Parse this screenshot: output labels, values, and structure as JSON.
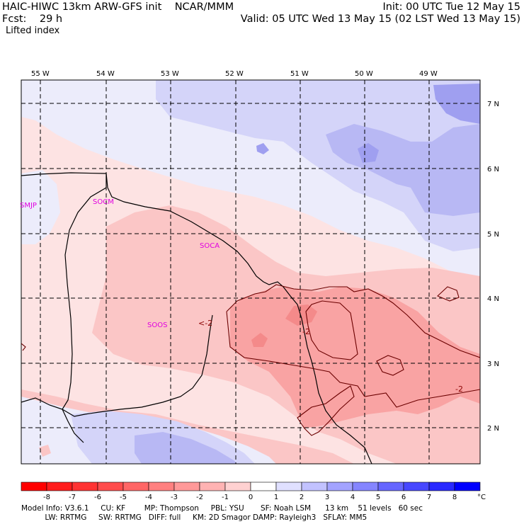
{
  "header": {
    "model_line": "HAIC-HIWC 13km ARW-GFS init    NCAR/MMM",
    "forecast_line": "Fcst:    29 h",
    "field_name": "Lifted index",
    "init_line": "Init: 00 UTC Tue 12 May 15",
    "valid_line": "Valid: 05 UTC Wed 13 May 15 (02 LST Wed 13 May 15)"
  },
  "map": {
    "lon_labels": [
      "55 W",
      "54 W",
      "53 W",
      "52 W",
      "51 W",
      "50 W",
      "49 W"
    ],
    "lat_labels": [
      "7 N",
      "6 N",
      "5 N",
      "4 N",
      "3 N",
      "2 N"
    ],
    "stations": [
      "SMJP",
      "SOCM",
      "SOCA",
      "SOOS"
    ],
    "contour_labels": [
      "<-2",
      "-2",
      "-2"
    ],
    "colors": {
      "light_pink": "#fde3e3",
      "pink": "#fbc6c6",
      "rose": "#f9a3a3",
      "red": "#f48a8a",
      "white_blue": "#ececfb",
      "light_blue": "#d4d4f9",
      "blue": "#b8b8f4",
      "mid_blue": "#9f9ff0",
      "coast": "#000000",
      "contour": "#8a0000",
      "station": "#e000e0"
    }
  },
  "colorbar": {
    "ticks": [
      "-8",
      "-7",
      "-6",
      "-5",
      "-4",
      "-3",
      "-2",
      "-1",
      "0",
      "1",
      "2",
      "3",
      "4",
      "5",
      "6",
      "7",
      "8"
    ],
    "unit": "°C",
    "colors": [
      "#ff0000",
      "#ff1c1c",
      "#ff3333",
      "#ff4c4c",
      "#ff6666",
      "#ff8080",
      "#ff9999",
      "#ffb3b3",
      "#ffd1d1",
      "#ffffff",
      "#e0e0ff",
      "#c2c2ff",
      "#a3a3ff",
      "#8585ff",
      "#6666ff",
      "#4747ff",
      "#2929ff",
      "#0000ff"
    ]
  },
  "footer": {
    "line1": "Model Info: V3.6.1     CU: KF        MP: Thompson     PBL: YSU       SF: Noah LSM      13 km    51 levels   60 sec",
    "line2": "          LW: RRTMG     SW: RRTMG   DIFF: full     KM: 2D Smagor DAMP: Rayleigh3   SFLAY: MM5"
  }
}
